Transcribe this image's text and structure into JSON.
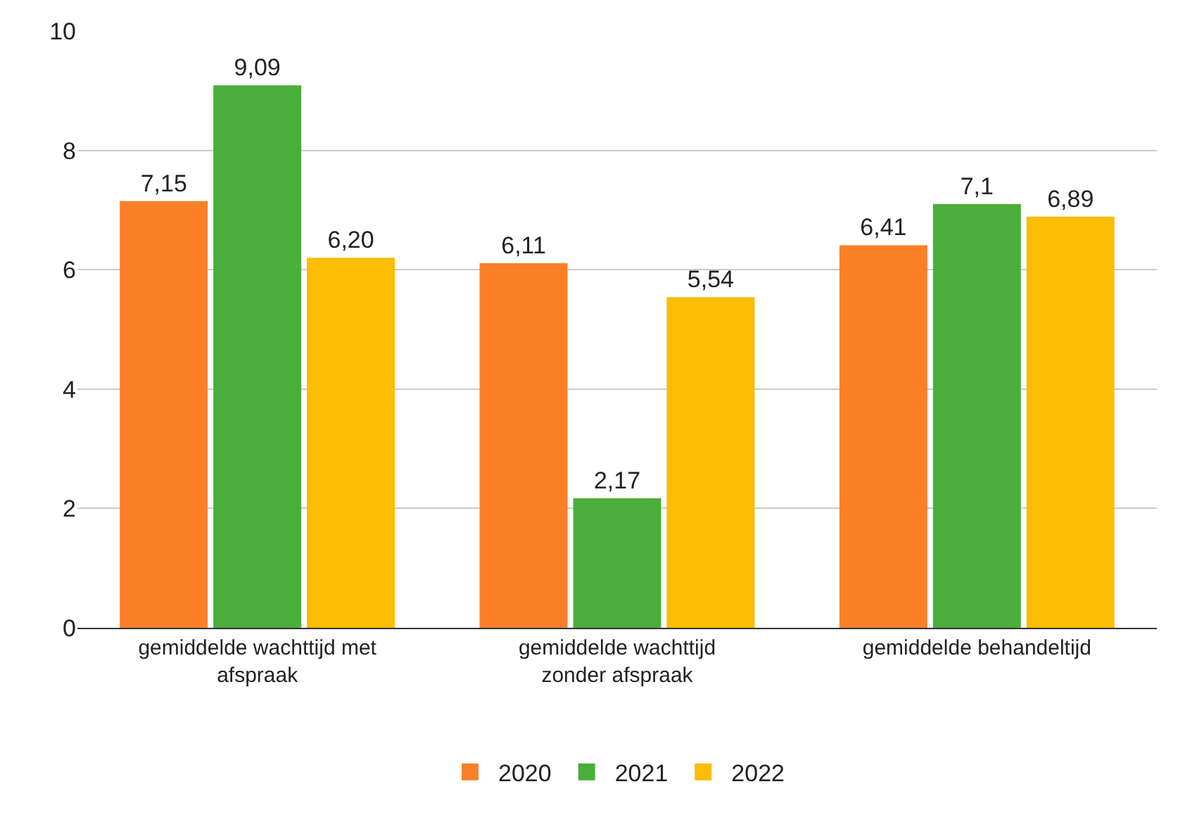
{
  "chart_data": {
    "type": "bar",
    "categories": [
      "gemiddelde wachttijd met afspraak",
      "gemiddelde wachttijd zonder afspraak",
      "gemiddelde behandeltijd"
    ],
    "series": [
      {
        "name": "2020",
        "color": "#fb7f28",
        "values": [
          7.15,
          6.11,
          6.41
        ],
        "value_labels": [
          "7,15",
          "6,11",
          "6,41"
        ]
      },
      {
        "name": "2021",
        "color": "#4aae3a",
        "values": [
          9.09,
          2.17,
          7.1
        ],
        "value_labels": [
          "9,09",
          "2,17",
          "7,1"
        ]
      },
      {
        "name": "2022",
        "color": "#fbbc04",
        "values": [
          6.2,
          5.54,
          6.89
        ],
        "value_labels": [
          "6,20",
          "5,54",
          "6,89"
        ]
      }
    ],
    "ylim": [
      0,
      10
    ],
    "yticks": [
      0,
      2,
      4,
      6,
      8,
      10
    ],
    "grid": "y",
    "legend": "bottom"
  }
}
